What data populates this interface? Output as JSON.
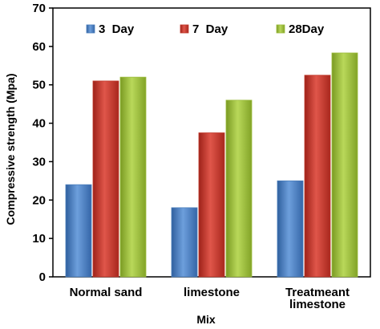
{
  "chart_data": {
    "type": "bar",
    "categories": [
      "Normal sand",
      "limestone",
      "Treatmeant limestone"
    ],
    "series": [
      {
        "name": "3  Day",
        "values": [
          24,
          18,
          25
        ],
        "color": "#4a7ebb"
      },
      {
        "name": "7  Day",
        "values": [
          51,
          37.5,
          52.5
        ],
        "color": "#c0392b"
      },
      {
        "name": "28Day",
        "values": [
          52,
          46,
          58.3
        ],
        "color": "#9bbb3b"
      }
    ],
    "xlabel": "Mix",
    "ylabel": "Compressive strength  (Mpa)",
    "ylim": [
      0,
      70
    ],
    "yticks": [
      0,
      10,
      20,
      30,
      40,
      50,
      60,
      70
    ],
    "legend_position": "top",
    "grid": false
  }
}
